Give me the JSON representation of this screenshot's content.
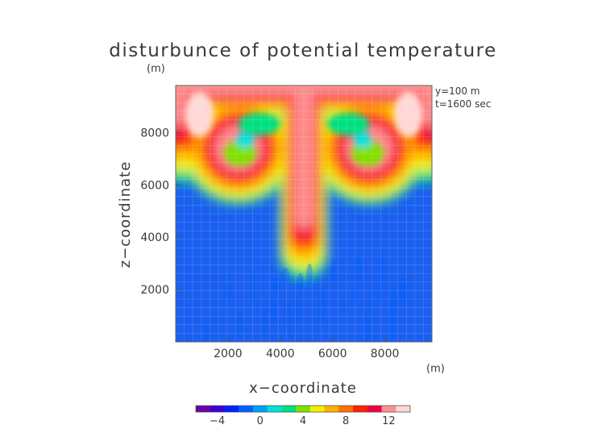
{
  "chart_data": {
    "type": "heatmap",
    "title": "disturbunce of potential temperature",
    "ylabel": "z−coordinate",
    "xlabel": "x−coordinate",
    "unit_y": "(m)",
    "unit_x": "(m)",
    "annotations": [
      "y=100  m",
      "t=1600 sec"
    ],
    "xlim": [
      0,
      9800
    ],
    "ylim": [
      0,
      9800
    ],
    "x_ticks": [
      2000,
      4000,
      6000,
      8000
    ],
    "x_tick_labels": [
      "2000",
      "4000",
      "6000",
      "8000"
    ],
    "y_ticks": [
      2000,
      4000,
      6000,
      8000
    ],
    "y_tick_labels": [
      "2000",
      "4000",
      "6000",
      "8000"
    ],
    "grid": true,
    "colorbar": {
      "range": [
        -6,
        14
      ],
      "ticks": [
        -4,
        0,
        4,
        8,
        12
      ],
      "tick_labels": [
        "−4",
        "0",
        "4",
        "8",
        "12"
      ],
      "colors": [
        "#6a00a8",
        "#3a00d8",
        "#0020ff",
        "#0060ff",
        "#00a0ff",
        "#00e0e0",
        "#00e080",
        "#80e000",
        "#f0f000",
        "#ffb000",
        "#ff7000",
        "#ff2000",
        "#f00040",
        "#ff9090",
        "#ffd8d8"
      ]
    },
    "features": [
      {
        "name": "central plume",
        "x": 4900,
        "z_min": 3000,
        "z_max": 9800,
        "peak_value": 12
      },
      {
        "name": "left vortex",
        "x": 2400,
        "z": 7400,
        "peak_value": 13
      },
      {
        "name": "right vortex",
        "x": 7400,
        "z": 7400,
        "peak_value": 13
      },
      {
        "name": "top layer",
        "z": 9600,
        "peak_value": 12
      },
      {
        "name": "background",
        "value": 0
      }
    ],
    "hot_spots": [
      {
        "x": 900,
        "z": 8700,
        "value": 14
      },
      {
        "x": 8900,
        "z": 8700,
        "value": 14
      }
    ]
  }
}
